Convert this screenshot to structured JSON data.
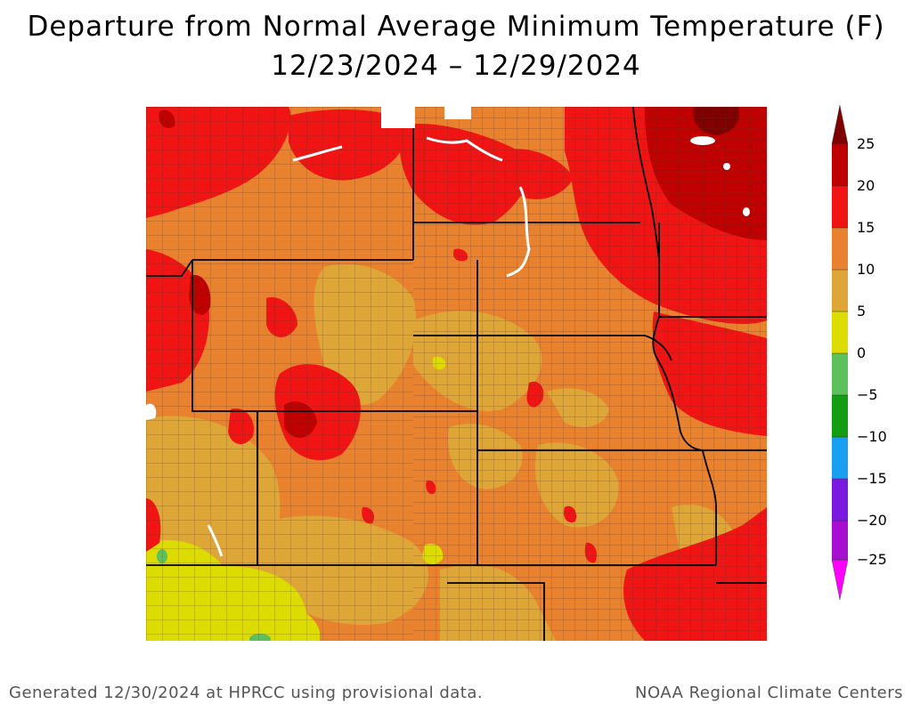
{
  "title": {
    "line1": "Departure from Normal Average Minimum Temperature (F)",
    "line2": "12/23/2024 – 12/29/2024"
  },
  "legend": {
    "labels": [
      "25",
      "20",
      "15",
      "10",
      "5",
      "0",
      "−5",
      "−10",
      "−15",
      "−20",
      "−25"
    ],
    "colors": {
      "above_25": "#7f0000",
      "20_25": "#c00000",
      "15_20": "#f01414",
      "10_15": "#e9822e",
      "5_10": "#dea636",
      "0_5": "#dcdc00",
      "neg5_0": "#5cc05c",
      "neg10_neg5": "#139d13",
      "neg15_neg10": "#1a9ef0",
      "neg20_neg15": "#7a1ae0",
      "neg25_neg20": "#a60fd0",
      "below_neg25": "#ff00ff"
    }
  },
  "map": {
    "state_border_color": "#000000",
    "county_border_color": "#5a3520",
    "water_color": "#ffffff"
  },
  "footer": {
    "left": "Generated 12/30/2024 at HPRCC using provisional data.",
    "right": "NOAA Regional Climate Centers"
  }
}
